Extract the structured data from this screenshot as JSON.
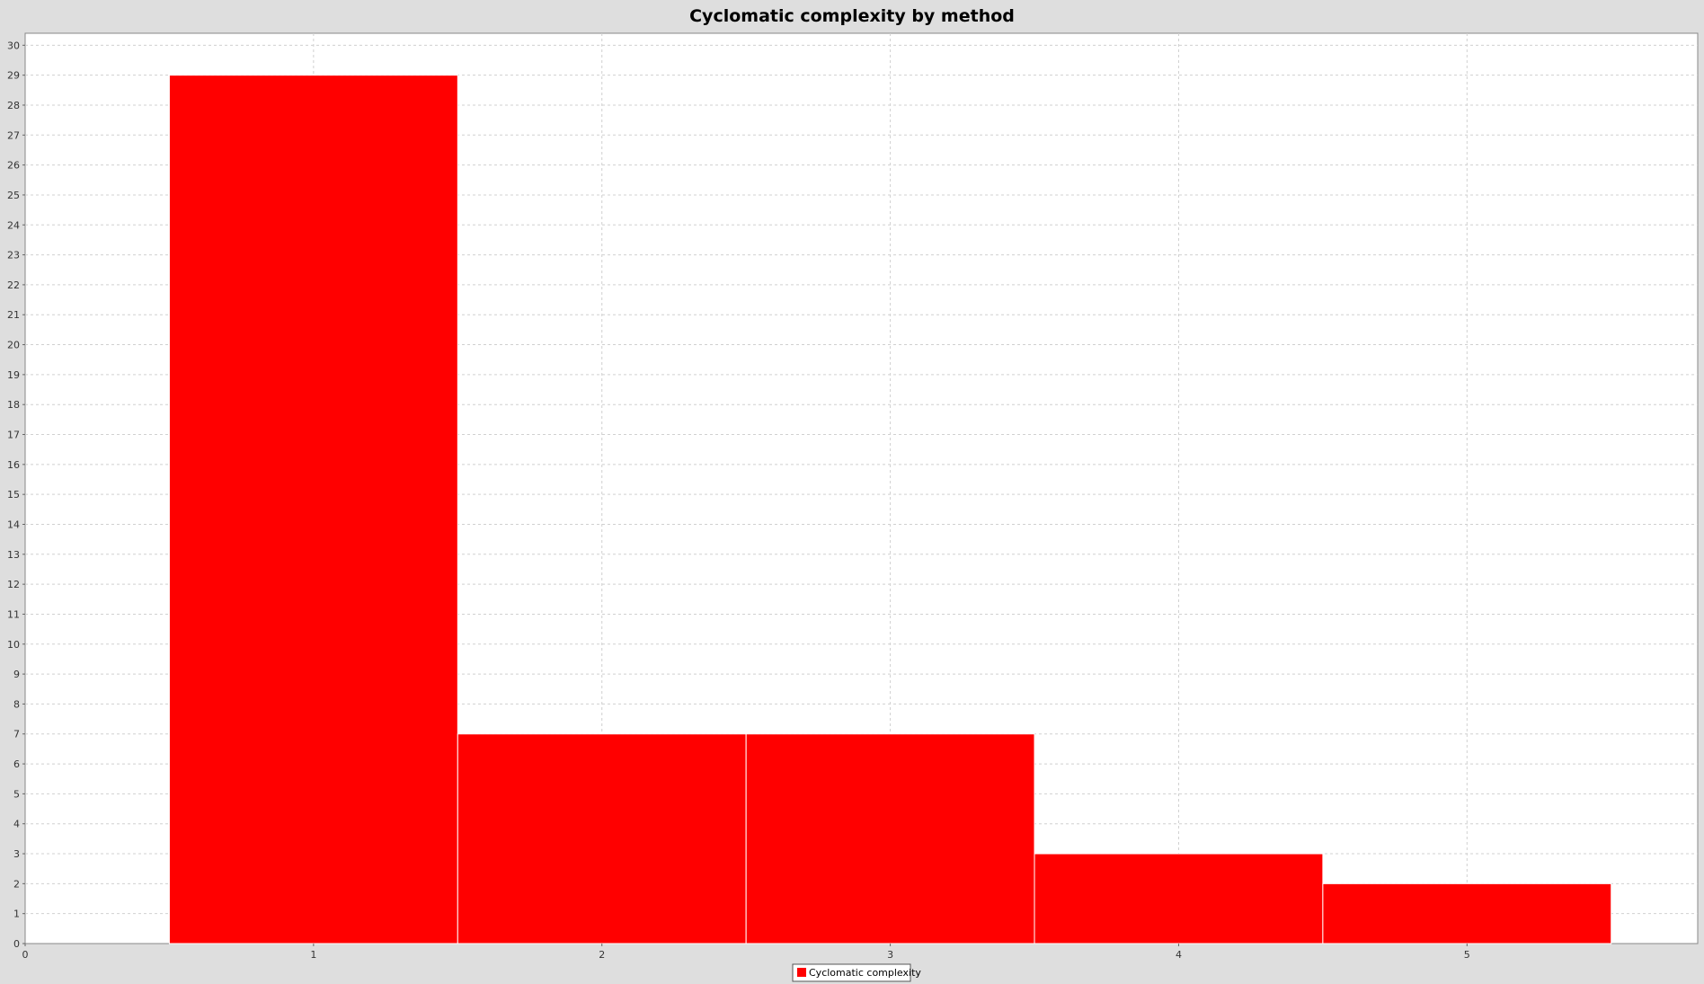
{
  "chart_data": {
    "type": "bar",
    "title": "Cyclomatic complexity by method",
    "xlabel": "",
    "ylabel": "",
    "x": [
      1,
      2,
      3,
      4,
      5
    ],
    "series": [
      {
        "name": "Cyclomatic complexity",
        "values": [
          29,
          7,
          7,
          3,
          2
        ],
        "color": "#ff0000"
      }
    ],
    "xlim": [
      0,
      5.8
    ],
    "ylim": [
      0,
      30.4
    ],
    "x_ticks": [
      "0",
      "1",
      "2",
      "3",
      "4",
      "5"
    ],
    "y_ticks": [
      "0",
      "1",
      "2",
      "3",
      "4",
      "5",
      "6",
      "7",
      "8",
      "9",
      "10",
      "11",
      "12",
      "13",
      "14",
      "15",
      "16",
      "17",
      "18",
      "19",
      "20",
      "21",
      "22",
      "23",
      "24",
      "25",
      "26",
      "27",
      "28",
      "29",
      "30"
    ],
    "grid": true,
    "legend_position": "bottom-center",
    "plot_background": "#ffffff",
    "page_background": "#dedede"
  }
}
